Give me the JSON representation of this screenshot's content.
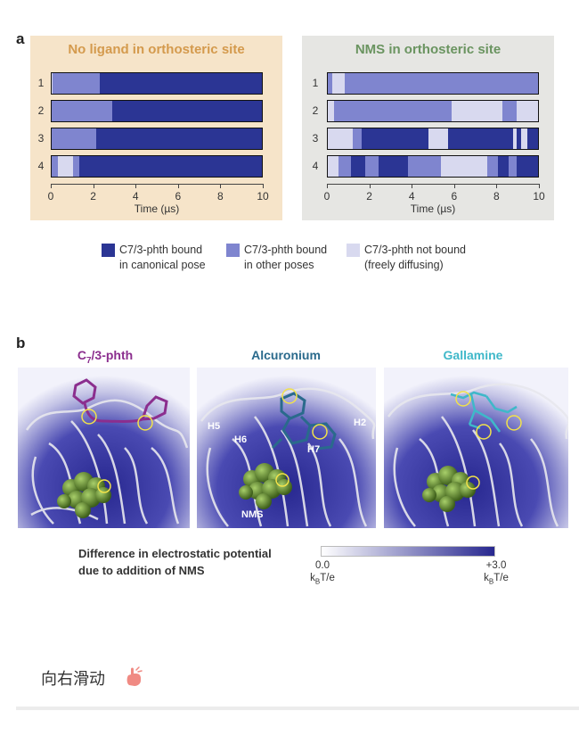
{
  "panel_a": {
    "letter": "a",
    "left_title": "No ligand in orthosteric site",
    "right_title": "NMS in orthosteric site",
    "row_labels": [
      "1",
      "2",
      "3",
      "4"
    ],
    "x_ticks": [
      "0",
      "2",
      "4",
      "6",
      "8",
      "10"
    ],
    "x_axis_title": "Time (µs)",
    "x_range": [
      0,
      10
    ],
    "colors": {
      "canonical": "#2b3594",
      "other": "#7f85cf",
      "unbound": "#d8d9ef"
    },
    "left_rows": [
      [
        [
          "unbound",
          0,
          0.05
        ],
        [
          "other",
          0.05,
          2.3
        ],
        [
          "canonical",
          2.3,
          10
        ]
      ],
      [
        [
          "other",
          0,
          2.9
        ],
        [
          "canonical",
          2.9,
          10
        ]
      ],
      [
        [
          "other",
          0,
          2.1
        ],
        [
          "canonical",
          2.1,
          10
        ]
      ],
      [
        [
          "other",
          0,
          0.3
        ],
        [
          "unbound",
          0.3,
          1.0
        ],
        [
          "other",
          1.0,
          1.3
        ],
        [
          "canonical",
          1.3,
          10
        ]
      ]
    ],
    "right_rows": [
      [
        [
          "other",
          0,
          0.2
        ],
        [
          "unbound",
          0.2,
          0.8
        ],
        [
          "other",
          0.8,
          10
        ]
      ],
      [
        [
          "unbound",
          0,
          0.3
        ],
        [
          "other",
          0.3,
          5.9
        ],
        [
          "unbound",
          5.9,
          8.3
        ],
        [
          "other",
          8.3,
          9.0
        ],
        [
          "unbound",
          9.0,
          10
        ]
      ],
      [
        [
          "unbound",
          0,
          1.2
        ],
        [
          "other",
          1.2,
          1.6
        ],
        [
          "canonical",
          1.6,
          4.8
        ],
        [
          "unbound",
          4.8,
          5.7
        ],
        [
          "canonical",
          5.7,
          8.8
        ],
        [
          "unbound",
          8.8,
          9.0
        ],
        [
          "canonical",
          9.0,
          9.2
        ],
        [
          "unbound",
          9.2,
          9.5
        ],
        [
          "canonical",
          9.5,
          10
        ]
      ],
      [
        [
          "unbound",
          0,
          0.5
        ],
        [
          "other",
          0.5,
          1.1
        ],
        [
          "canonical",
          1.1,
          1.8
        ],
        [
          "other",
          1.8,
          2.4
        ],
        [
          "canonical",
          2.4,
          3.8
        ],
        [
          "other",
          3.8,
          5.4
        ],
        [
          "unbound",
          5.4,
          7.6
        ],
        [
          "other",
          7.6,
          8.1
        ],
        [
          "canonical",
          8.1,
          8.6
        ],
        [
          "other",
          8.6,
          9.0
        ],
        [
          "canonical",
          9.0,
          10
        ]
      ]
    ],
    "legend": [
      {
        "color": "#2b3594",
        "line1": "C7/3-phth bound",
        "line2": "in canonical pose"
      },
      {
        "color": "#7f85cf",
        "line1": "C7/3-phth bound",
        "line2": "in other poses"
      },
      {
        "color": "#d8d9ef",
        "line1": "C7/3-phth not bound",
        "line2": "(freely diffusing)"
      }
    ]
  },
  "panel_b": {
    "letter": "b",
    "titles": [
      {
        "text": "C7/3-phth",
        "color": "#8b2e8e"
      },
      {
        "text": "Alcuronium",
        "color": "#2a6a8c"
      },
      {
        "text": "Gallamine",
        "color": "#3fb8c9"
      }
    ],
    "helix_labels": [
      "H5",
      "H6",
      "H7",
      "H2"
    ],
    "nms_label": "NMS",
    "colorbar_title_line1": "Difference in electrostatic potential",
    "colorbar_title_line2": "due to addition of NMS",
    "colorbar_min": "0.0",
    "colorbar_max": "+3.0",
    "colorbar_unit": "kBT/e",
    "colorbar_colors": [
      "#ffffff",
      "#27278f"
    ]
  },
  "footer": {
    "swipe_text": "向右滑动",
    "swipe_icon": "pointing-hand-icon"
  }
}
